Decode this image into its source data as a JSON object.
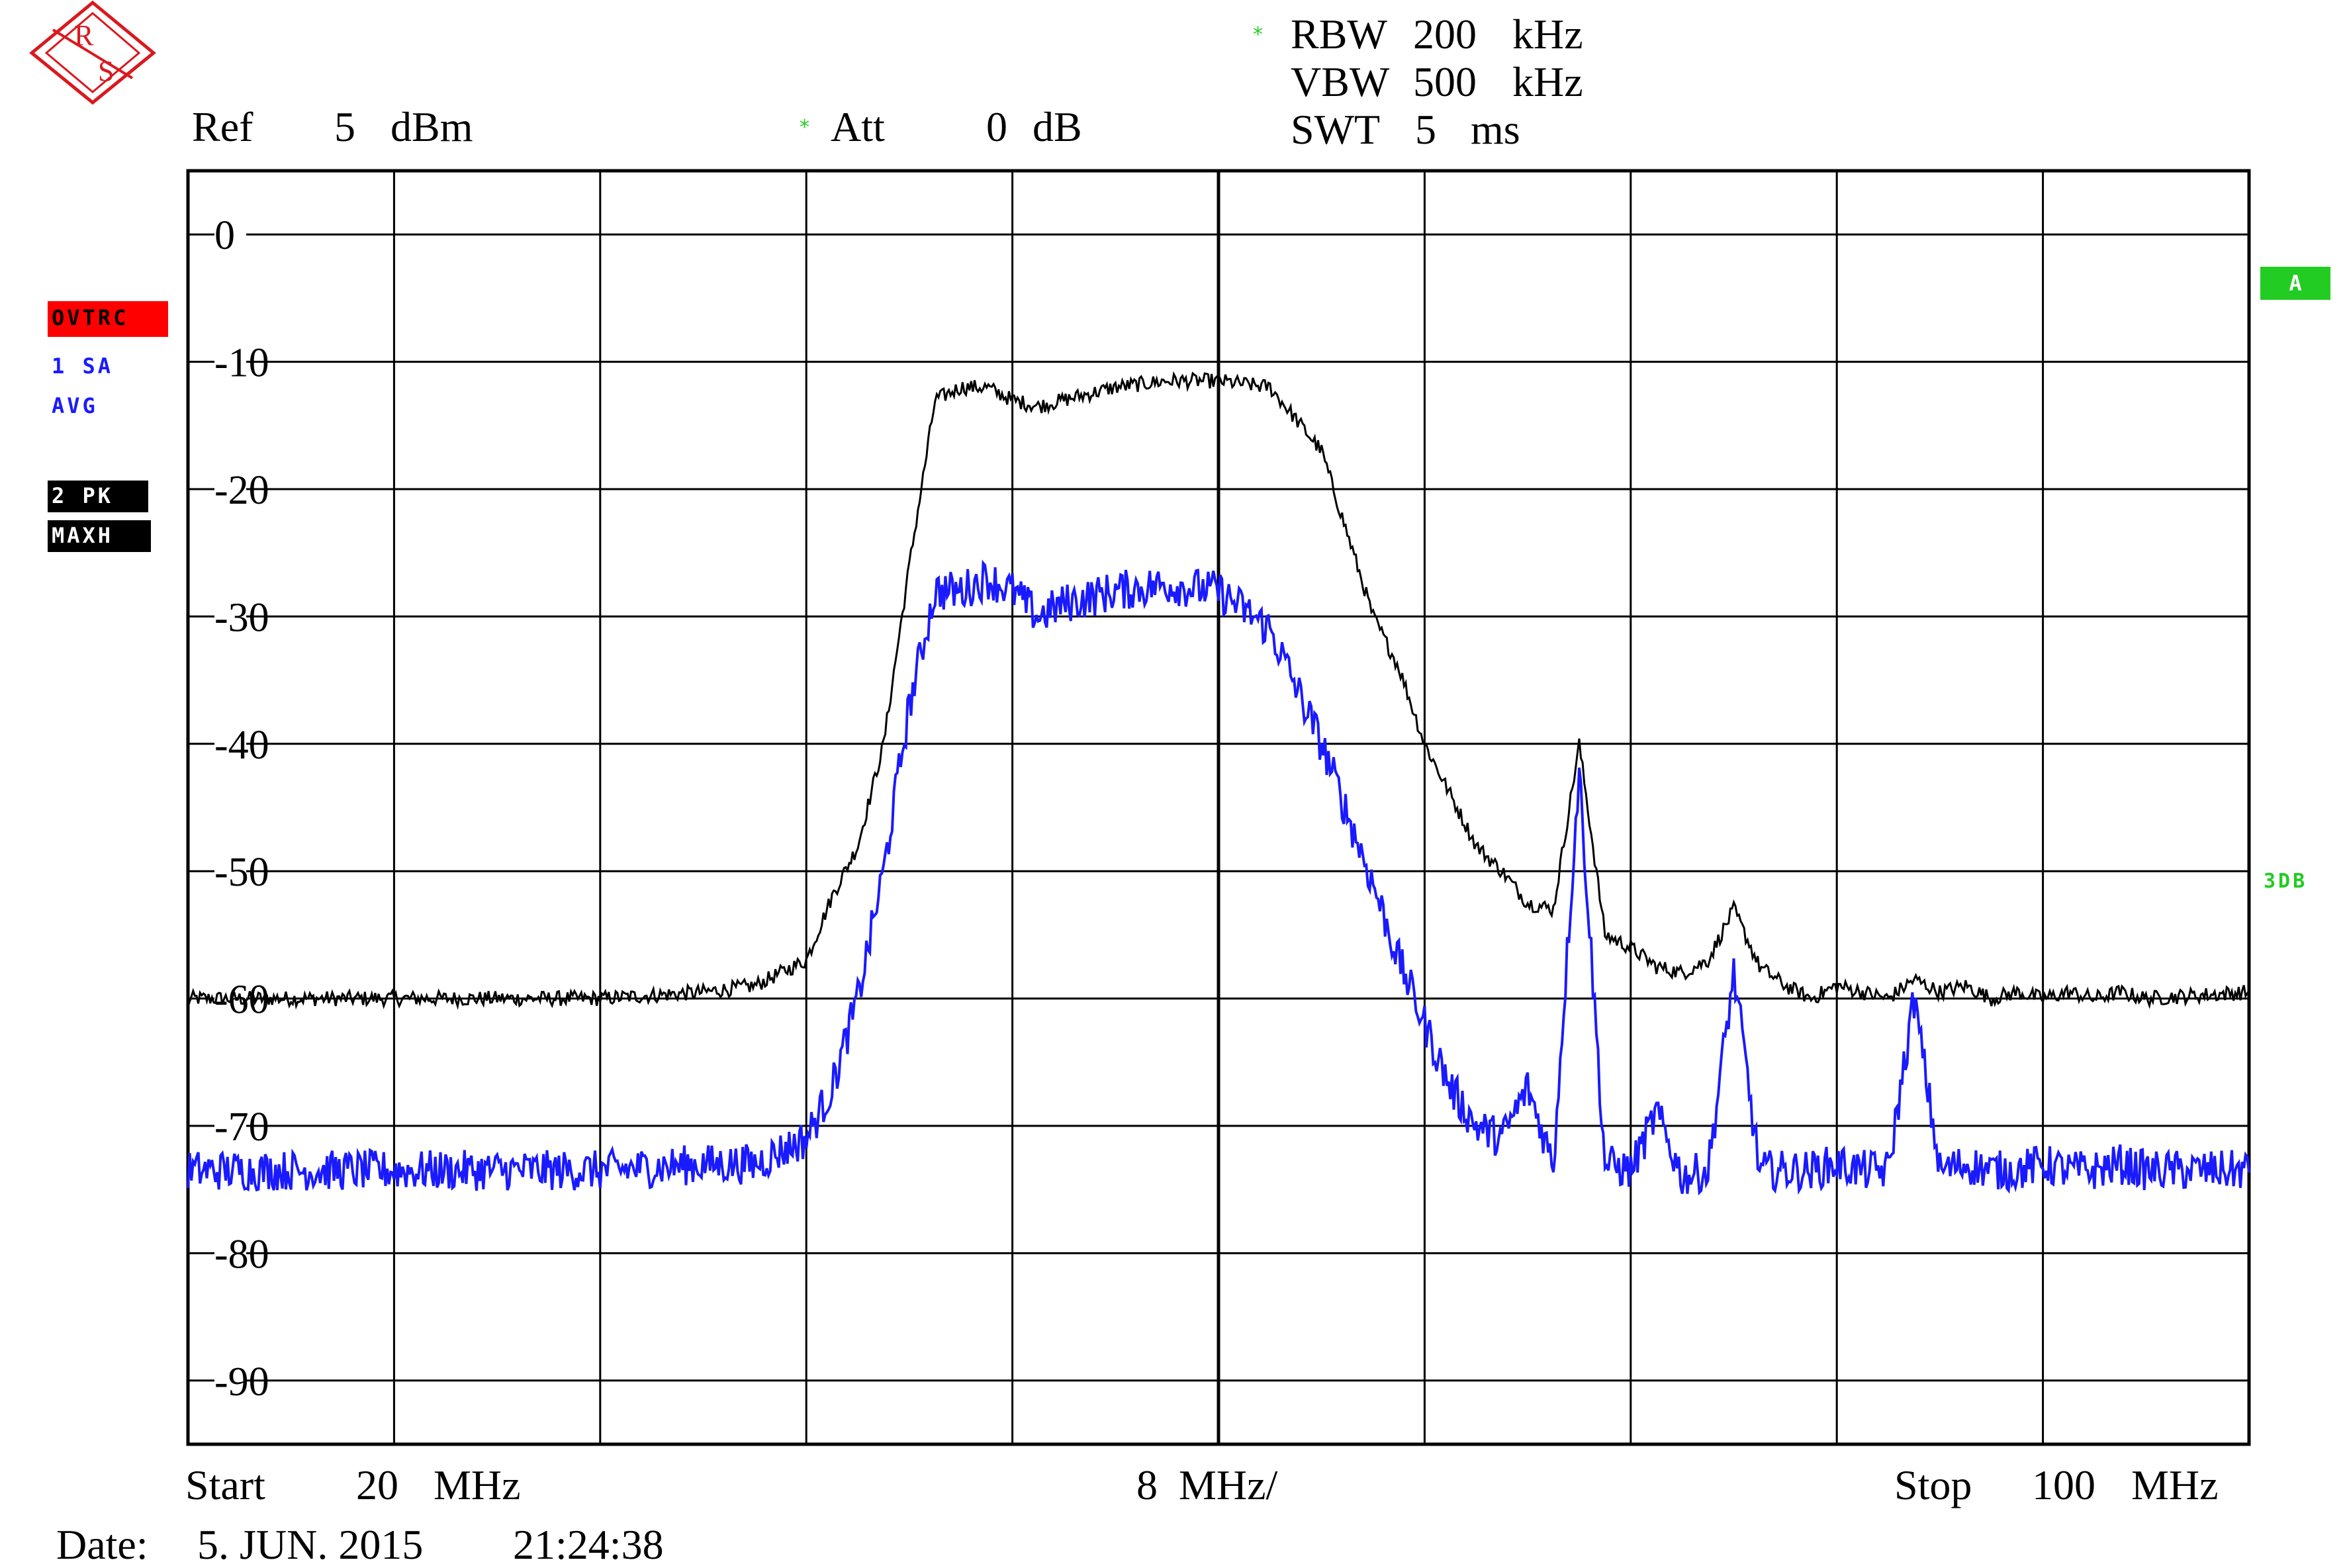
{
  "header": {
    "ref_label": "Ref",
    "ref_value": "5",
    "ref_unit": "dBm",
    "att_label": "Att",
    "att_value": "0",
    "att_unit": "dB",
    "rbw_label": "RBW",
    "rbw_value": "200",
    "rbw_unit": "kHz",
    "vbw_label": "VBW",
    "vbw_value": "500",
    "vbw_unit": "kHz",
    "swt_label": "SWT",
    "swt_value": "5",
    "swt_unit": "ms"
  },
  "side_left": {
    "ovtrc": "OVTRC",
    "trace1_label": "1 SA",
    "trace1_mode": "AVG",
    "trace2_label": "2 PK",
    "trace2_mode": "MAXH"
  },
  "side_right": {
    "marker_a": "A",
    "db3": "3DB"
  },
  "footer": {
    "start_label": "Start",
    "start_value": "20",
    "start_unit": "MHz",
    "span": "8  MHz/",
    "stop_label": "Stop",
    "stop_value": "100",
    "stop_unit": "MHz",
    "date_label": "Date:",
    "date_value": "5. JUN. 2015",
    "time_value": "21:24:38"
  },
  "colors": {
    "background": "#ffffff",
    "grid": "#000000",
    "trace_maxhold": "#000000",
    "trace_average": "#1a1aff",
    "ovtrc_badge": "#ff0000",
    "marker_badge": "#22cc22",
    "status_star": "#22cc22",
    "logo": "#d9191f"
  },
  "icons": {
    "logo": "rohde-schwarz-logo-icon",
    "status": "star-icon"
  },
  "chart_data": {
    "type": "line",
    "title": "",
    "xlabel": "",
    "ylabel": "",
    "x_unit": "MHz",
    "y_unit": "dBm",
    "xlim": [
      20,
      100
    ],
    "ylim": [
      -95,
      5
    ],
    "grid": true,
    "x_divisions": 10,
    "y_tick_values": [
      0,
      -10,
      -20,
      -30,
      -40,
      -50,
      -60,
      -70,
      -80,
      -90
    ],
    "y_tick_labels": [
      "0",
      "-10",
      "-20",
      "-30",
      "-40",
      "-50",
      "-60",
      "-70",
      "-80",
      "-90"
    ],
    "series": [
      {
        "name": "2 PK MAXH",
        "x": [
          20,
          24,
          28,
          32,
          36,
          40,
          42,
          44,
          45,
          46,
          47,
          48,
          49,
          50,
          51,
          52,
          53,
          54,
          56,
          58,
          60,
          62,
          64,
          66,
          67,
          68,
          69,
          70,
          71,
          72,
          73,
          74,
          75,
          76,
          77,
          78,
          79,
          80,
          81,
          82,
          83,
          84,
          85,
          86,
          87,
          88,
          89,
          90,
          91,
          92,
          93,
          94,
          95,
          96,
          100
        ],
        "y": [
          -60,
          -60,
          -60,
          -60,
          -60,
          -59.5,
          -59,
          -57,
          -52,
          -48,
          -40,
          -26,
          -13,
          -12,
          -12,
          -13,
          -13.5,
          -13,
          -12,
          -11.5,
          -11.5,
          -12,
          -17,
          -30,
          -34,
          -40,
          -44,
          -48,
          -50,
          -52.5,
          -53,
          -40,
          -55,
          -56,
          -57.5,
          -58,
          -57,
          -53,
          -57.5,
          -59,
          -60,
          -59,
          -59.5,
          -60,
          -58.5,
          -59.5,
          -59,
          -60,
          -59.5,
          -60,
          -59.5,
          -60,
          -59.5,
          -60,
          -59.5
        ]
      },
      {
        "name": "1 SA AVG",
        "x": [
          20,
          24,
          28,
          32,
          36,
          40,
          42,
          44,
          45,
          46,
          47,
          48,
          49,
          50,
          51,
          52,
          53,
          54,
          56,
          58,
          60,
          62,
          64,
          66,
          67,
          68,
          69,
          70,
          71,
          72,
          73,
          74,
          75,
          76,
          77,
          78,
          79,
          80,
          81,
          82,
          83,
          84,
          85,
          86,
          87,
          88,
          89,
          90,
          91,
          92,
          93,
          94,
          95,
          96,
          100
        ],
        "y": [
          -73.5,
          -73.5,
          -73.5,
          -73.5,
          -73.5,
          -73,
          -73,
          -71,
          -67,
          -60,
          -50,
          -37,
          -28,
          -28,
          -27,
          -28,
          -30,
          -29,
          -28,
          -27.5,
          -28,
          -31,
          -40,
          -51,
          -57,
          -62,
          -67,
          -70,
          -71,
          -67,
          -73,
          -42,
          -73,
          -73.5,
          -69,
          -74,
          -73.5,
          -58,
          -73.5,
          -73.5,
          -73.5,
          -73,
          -73.5,
          -73.5,
          -60,
          -73.5,
          -73,
          -73.5,
          -73.5,
          -73,
          -73.5,
          -73.5,
          -73,
          -73.5,
          -73.5
        ]
      }
    ]
  }
}
